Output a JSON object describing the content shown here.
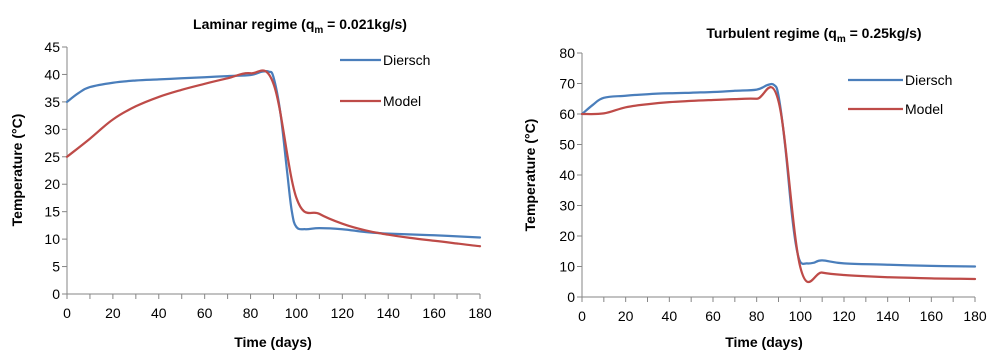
{
  "chart_data": [
    {
      "type": "line",
      "title": "Laminar regime (q",
      "title_sub": "m",
      "title_tail": " = 0.021kg/s)",
      "xlabel": "Time (days)",
      "ylabel": "Temperature (°C)",
      "xlim": [
        0,
        180
      ],
      "ylim": [
        0,
        45
      ],
      "xticks": [
        "0",
        "20",
        "40",
        "60",
        "80",
        "100",
        "120",
        "140",
        "160",
        "180"
      ],
      "yticks": [
        "0",
        "5",
        "10",
        "15",
        "20",
        "25",
        "30",
        "35",
        "40",
        "45"
      ],
      "grid": false,
      "legend_placement": "right",
      "series": [
        {
          "name": "Diersch",
          "color": "#4a7ebb",
          "points": [
            [
              0,
              35
            ],
            [
              5,
              36.6
            ],
            [
              10,
              37.7
            ],
            [
              20,
              38.5
            ],
            [
              30,
              38.9
            ],
            [
              40,
              39.1
            ],
            [
              50,
              39.3
            ],
            [
              60,
              39.5
            ],
            [
              70,
              39.7
            ],
            [
              80,
              39.9
            ],
            [
              85,
              40.5
            ],
            [
              88,
              40.5
            ],
            [
              90,
              39.5
            ],
            [
              93,
              33
            ],
            [
              96,
              22
            ],
            [
              98,
              15
            ],
            [
              100,
              12.2
            ],
            [
              104,
              11.8
            ],
            [
              110,
              12
            ],
            [
              120,
              11.8
            ],
            [
              130,
              11.3
            ],
            [
              140,
              11
            ],
            [
              160,
              10.7
            ],
            [
              180,
              10.3
            ]
          ]
        },
        {
          "name": "Model",
          "color": "#be4b48",
          "points": [
            [
              0,
              25
            ],
            [
              10,
              28.3
            ],
            [
              20,
              31.8
            ],
            [
              30,
              34.2
            ],
            [
              40,
              35.9
            ],
            [
              50,
              37.2
            ],
            [
              60,
              38.3
            ],
            [
              70,
              39.3
            ],
            [
              80,
              40.2
            ],
            [
              90,
              38.3
            ],
            [
              100,
              17.5
            ],
            [
              110,
              14.6
            ],
            [
              120,
              12.8
            ],
            [
              130,
              11.6
            ],
            [
              140,
              10.8
            ],
            [
              150,
              10.2
            ],
            [
              160,
              9.7
            ],
            [
              170,
              9.2
            ],
            [
              180,
              8.7
            ]
          ]
        }
      ]
    },
    {
      "type": "line",
      "title": "Turbulent regime (q",
      "title_sub": "m",
      "title_tail": " = 0.25kg/s)",
      "xlabel": "Time (days)",
      "ylabel": "Temperature (°C)",
      "xlim": [
        0,
        180
      ],
      "ylim": [
        0,
        80
      ],
      "xticks": [
        "0",
        "20",
        "40",
        "60",
        "80",
        "100",
        "120",
        "140",
        "160",
        "180"
      ],
      "yticks": [
        "0",
        "10",
        "20",
        "30",
        "40",
        "50",
        "60",
        "70",
        "80"
      ],
      "grid": false,
      "legend_placement": "right",
      "series": [
        {
          "name": "Diersch",
          "color": "#4a7ebb",
          "points": [
            [
              0,
              60
            ],
            [
              5,
              63
            ],
            [
              10,
              65.3
            ],
            [
              20,
              66
            ],
            [
              30,
              66.5
            ],
            [
              40,
              66.8
            ],
            [
              50,
              67
            ],
            [
              60,
              67.2
            ],
            [
              70,
              67.6
            ],
            [
              80,
              68
            ],
            [
              85,
              69.5
            ],
            [
              88,
              69.5
            ],
            [
              90,
              66
            ],
            [
              93,
              50
            ],
            [
              96,
              28
            ],
            [
              98,
              17
            ],
            [
              100,
              11.5
            ],
            [
              103,
              11
            ],
            [
              106,
              11.2
            ],
            [
              110,
              12
            ],
            [
              120,
              11
            ],
            [
              140,
              10.6
            ],
            [
              160,
              10.2
            ],
            [
              180,
              10
            ]
          ]
        },
        {
          "name": "Model",
          "color": "#be4b48",
          "points": [
            [
              0,
              60
            ],
            [
              10,
              60.2
            ],
            [
              20,
              62.2
            ],
            [
              30,
              63.2
            ],
            [
              40,
              63.9
            ],
            [
              50,
              64.3
            ],
            [
              60,
              64.6
            ],
            [
              70,
              64.9
            ],
            [
              80,
              65
            ],
            [
              90,
              64.2
            ],
            [
              100,
              9.8
            ],
            [
              110,
              8
            ],
            [
              120,
              7.2
            ],
            [
              130,
              6.8
            ],
            [
              140,
              6.5
            ],
            [
              150,
              6.3
            ],
            [
              160,
              6.1
            ],
            [
              170,
              6
            ],
            [
              180,
              5.9
            ]
          ]
        }
      ]
    }
  ]
}
